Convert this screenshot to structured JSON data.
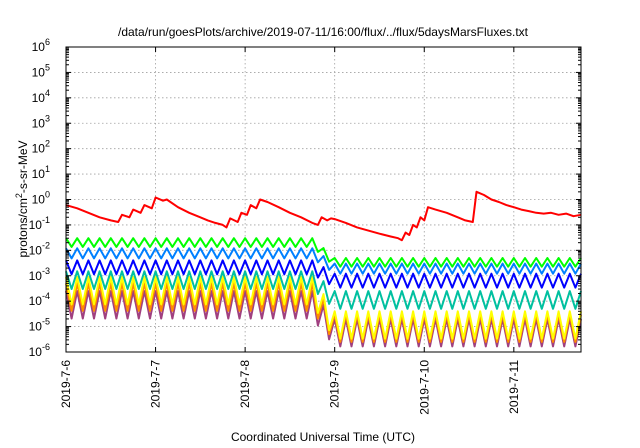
{
  "chart_data": {
    "type": "line",
    "title": "/data/run/goesPlots/archive/2019-07-11/16:00/flux/../flux/5daysMarsFluxes.txt",
    "xlabel": "Coordinated Universal Time (UTC)",
    "ylabel_parts": {
      "before": "protons/cm",
      "sup": "2",
      "after": "-s-sr-MeV"
    },
    "ylabel": "protons/cm2-s-sr-MeV",
    "x_scale": "time",
    "y_scale": "log",
    "xlim": [
      "2019-07-06T00:00",
      "2019-07-11T18:00"
    ],
    "ylim": [
      1e-06,
      1000000.0
    ],
    "grid": true,
    "x_ticks": [
      "2019-7-6",
      "2019-7-7",
      "2019-7-8",
      "2019-7-9",
      "2019-7-10",
      "2019-7-11"
    ],
    "y_ticks": [
      {
        "value": 1e-06,
        "base": "10",
        "exp": "-6"
      },
      {
        "value": 1e-05,
        "base": "10",
        "exp": "-5"
      },
      {
        "value": 0.0001,
        "base": "10",
        "exp": "-4"
      },
      {
        "value": 0.001,
        "base": "10",
        "exp": "-3"
      },
      {
        "value": 0.01,
        "base": "10",
        "exp": "-2"
      },
      {
        "value": 0.1,
        "base": "10",
        "exp": "-1"
      },
      {
        "value": 1,
        "base": "10",
        "exp": "0"
      },
      {
        "value": 10,
        "base": "10",
        "exp": "1"
      },
      {
        "value": 100,
        "base": "10",
        "exp": "2"
      },
      {
        "value": 1000,
        "base": "10",
        "exp": "3"
      },
      {
        "value": 10000,
        "base": "10",
        "exp": "4"
      },
      {
        "value": 100000,
        "base": "10",
        "exp": "5"
      },
      {
        "value": 1000000,
        "base": "10",
        "exp": "6"
      }
    ],
    "series": [
      {
        "color": "#ff0000",
        "points": [
          [
            "2019-07-06T00:00",
            0.6
          ],
          [
            "2019-07-06T03:00",
            0.45
          ],
          [
            "2019-07-06T06:00",
            0.3
          ],
          [
            "2019-07-06T09:00",
            0.2
          ],
          [
            "2019-07-06T12:00",
            0.15
          ],
          [
            "2019-07-06T14:00",
            0.13
          ],
          [
            "2019-07-06T15:00",
            0.25
          ],
          [
            "2019-07-06T17:00",
            0.2
          ],
          [
            "2019-07-06T18:00",
            0.4
          ],
          [
            "2019-07-06T20:00",
            0.3
          ],
          [
            "2019-07-06T21:00",
            0.6
          ],
          [
            "2019-07-06T23:00",
            0.45
          ],
          [
            "2019-07-07T00:00",
            1.2
          ],
          [
            "2019-07-07T02:00",
            0.9
          ],
          [
            "2019-07-07T03:00",
            1.0
          ],
          [
            "2019-07-07T06:00",
            0.5
          ],
          [
            "2019-07-07T09:00",
            0.3
          ],
          [
            "2019-07-07T12:00",
            0.2
          ],
          [
            "2019-07-07T14:00",
            0.15
          ],
          [
            "2019-07-07T16:00",
            0.12
          ],
          [
            "2019-07-07T18:00",
            0.1
          ],
          [
            "2019-07-07T19:00",
            0.08
          ],
          [
            "2019-07-07T20:00",
            0.18
          ],
          [
            "2019-07-07T22:00",
            0.13
          ],
          [
            "2019-07-07T23:00",
            0.3
          ],
          [
            "2019-07-08T00:30",
            0.25
          ],
          [
            "2019-07-08T01:30",
            0.6
          ],
          [
            "2019-07-08T03:00",
            0.45
          ],
          [
            "2019-07-08T04:00",
            1.0
          ],
          [
            "2019-07-08T06:00",
            0.8
          ],
          [
            "2019-07-08T09:00",
            0.5
          ],
          [
            "2019-07-08T12:00",
            0.3
          ],
          [
            "2019-07-08T15:00",
            0.2
          ],
          [
            "2019-07-08T18:00",
            0.12
          ],
          [
            "2019-07-08T19:30",
            0.1
          ],
          [
            "2019-07-08T20:30",
            0.2
          ],
          [
            "2019-07-08T22:00",
            0.15
          ],
          [
            "2019-07-08T23:00",
            0.18
          ],
          [
            "2019-07-09T00:00",
            0.17
          ],
          [
            "2019-07-09T03:00",
            0.12
          ],
          [
            "2019-07-09T06:00",
            0.08
          ],
          [
            "2019-07-09T09:00",
            0.06
          ],
          [
            "2019-07-09T12:00",
            0.045
          ],
          [
            "2019-07-09T15:00",
            0.035
          ],
          [
            "2019-07-09T17:00",
            0.03
          ],
          [
            "2019-07-09T18:00",
            0.025
          ],
          [
            "2019-07-09T19:00",
            0.05
          ],
          [
            "2019-07-09T20:00",
            0.04
          ],
          [
            "2019-07-09T21:00",
            0.1
          ],
          [
            "2019-07-09T22:00",
            0.08
          ],
          [
            "2019-07-09T23:00",
            0.2
          ],
          [
            "2019-07-10T00:00",
            0.15
          ],
          [
            "2019-07-10T01:00",
            0.5
          ],
          [
            "2019-07-10T03:00",
            0.4
          ],
          [
            "2019-07-10T06:00",
            0.3
          ],
          [
            "2019-07-10T09:00",
            0.2
          ],
          [
            "2019-07-10T11:00",
            0.15
          ],
          [
            "2019-07-10T13:00",
            0.13
          ],
          [
            "2019-07-10T14:00",
            2.0
          ],
          [
            "2019-07-10T16:00",
            1.5
          ],
          [
            "2019-07-10T18:00",
            1.0
          ],
          [
            "2019-07-10T20:00",
            0.8
          ],
          [
            "2019-07-10T22:00",
            0.6
          ],
          [
            "2019-07-11T00:00",
            0.5
          ],
          [
            "2019-07-11T02:00",
            0.4
          ],
          [
            "2019-07-11T04:00",
            0.35
          ],
          [
            "2019-07-11T06:00",
            0.3
          ],
          [
            "2019-07-11T08:00",
            0.28
          ],
          [
            "2019-07-11T10:00",
            0.3
          ],
          [
            "2019-07-11T12:00",
            0.25
          ],
          [
            "2019-07-11T14:00",
            0.28
          ],
          [
            "2019-07-11T16:00",
            0.22
          ],
          [
            "2019-07-11T18:00",
            0.25
          ]
        ]
      },
      {
        "color": "#00ff00",
        "sawtooth": {
          "level_start": 0.03,
          "level_end": 0.005,
          "drop_time": "2019-07-08T18:00",
          "depth": 2.2,
          "cycles_per_day": 8
        }
      },
      {
        "color": "#0080ff",
        "sawtooth": {
          "level_start": 0.012,
          "level_end": 0.003,
          "drop_time": "2019-07-08T18:00",
          "depth": 2.5,
          "cycles_per_day": 8
        }
      },
      {
        "color": "#0000ff",
        "sawtooth": {
          "level_start": 0.004,
          "level_end": 0.0012,
          "drop_time": "2019-07-08T18:00",
          "depth": 3.5,
          "cycles_per_day": 8
        }
      },
      {
        "color": "#00c0a0",
        "sawtooth": {
          "level_start": 0.0015,
          "level_end": 0.00025,
          "drop_time": "2019-07-08T18:00",
          "depth": 5,
          "cycles_per_day": 8
        }
      },
      {
        "color": "#ffff00",
        "sawtooth": {
          "level_start": 0.0009,
          "level_end": 4e-05,
          "drop_time": "2019-07-08T18:00",
          "depth": 12,
          "cycles_per_day": 8
        }
      },
      {
        "color": "#ff8c00",
        "sawtooth": {
          "level_start": 0.0005,
          "level_end": 3e-05,
          "drop_time": "2019-07-08T18:00",
          "depth": 12,
          "cycles_per_day": 8
        }
      },
      {
        "color": "#a04080",
        "sawtooth": {
          "level_start": 0.00025,
          "level_end": 2e-05,
          "drop_time": "2019-07-08T18:00",
          "depth": 12,
          "cycles_per_day": 8
        }
      }
    ]
  }
}
